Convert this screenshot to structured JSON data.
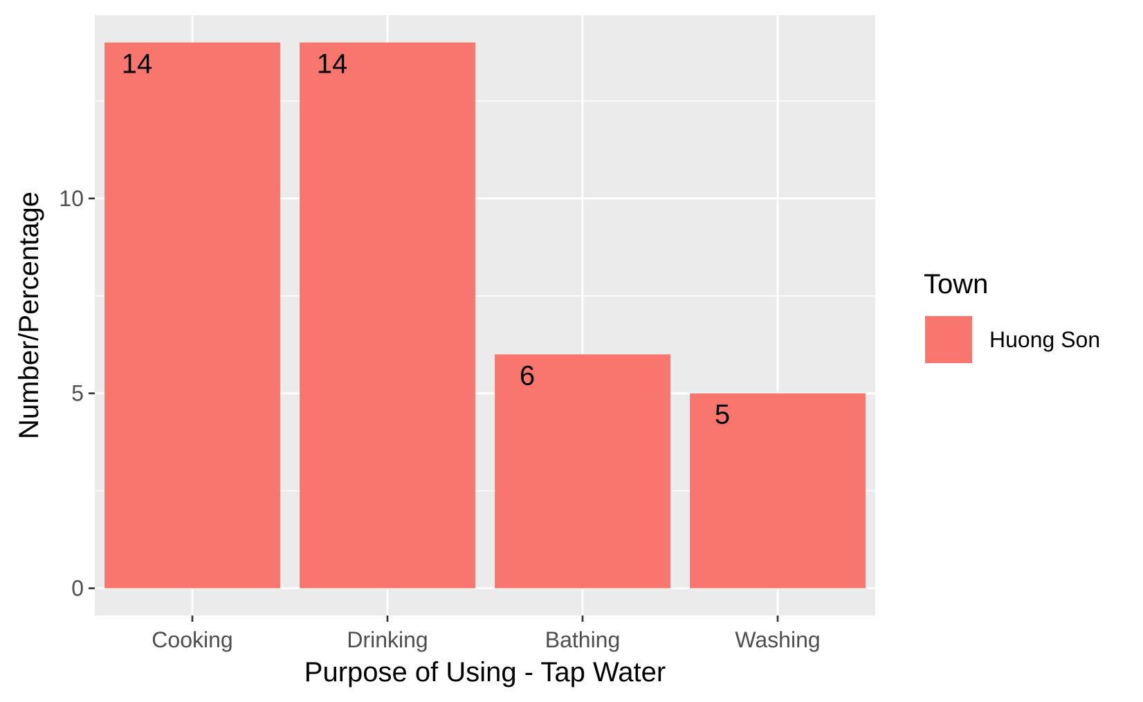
{
  "chart_data": {
    "type": "bar",
    "categories": [
      "Cooking",
      "Drinking",
      "Bathing",
      "Washing"
    ],
    "series": [
      {
        "name": "Huong Son",
        "values": [
          14,
          14,
          6,
          5
        ]
      }
    ],
    "data_labels": [
      "14",
      "14",
      "6",
      "5"
    ],
    "xlabel": "Purpose of Using - Tap Water",
    "ylabel": "Number/Percentage",
    "ylim": [
      -0.7,
      14.7
    ],
    "yticks": [
      0,
      5,
      10
    ],
    "ytick_labels": [
      "0",
      "5",
      "10"
    ],
    "grid": true,
    "legend": {
      "title": "Town",
      "entries": [
        "Huong Son"
      ],
      "position": "right"
    },
    "colors": {
      "bar": "#F8766D",
      "panel": "#EBEBEB",
      "grid": "#FFFFFF",
      "text": "#000000",
      "tick_text": "#4D4D4D"
    }
  }
}
